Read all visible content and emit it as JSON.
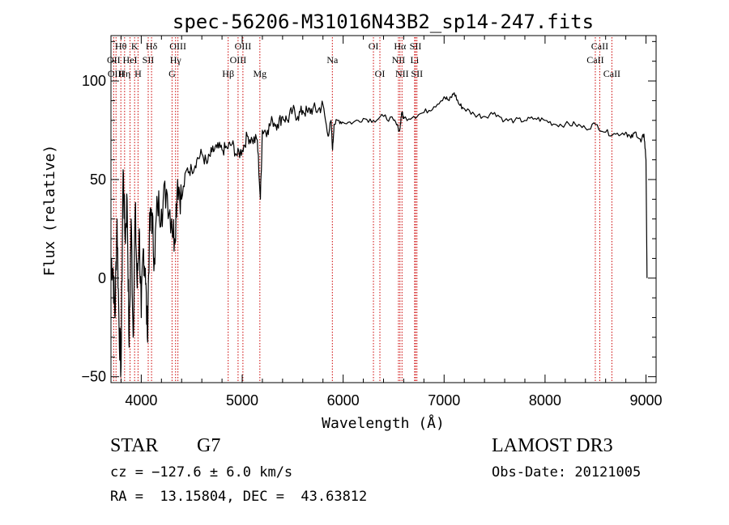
{
  "chart_data": {
    "type": "line",
    "title": "spec-56206-M31016N43B2_sp14-247.fits",
    "xlabel": "Wavelength (Å)",
    "ylabel": "Flux (relative)",
    "xlim": [
      3700,
      9100
    ],
    "ylim": [
      -53,
      123
    ],
    "xticks": [
      4000,
      5000,
      6000,
      7000,
      8000,
      9000
    ],
    "yticks": [
      -50,
      0,
      50,
      100
    ],
    "xtick_labels": [
      "4000",
      "5000",
      "6000",
      "7000",
      "8000",
      "9000"
    ],
    "ytick_labels": [
      "−50",
      "0",
      "50",
      "100"
    ],
    "grid": false,
    "line_color": "#000000",
    "marker_color": "#cc0000",
    "spectrum": {
      "x": [
        3700,
        3720,
        3740,
        3760,
        3780,
        3800,
        3820,
        3840,
        3860,
        3880,
        3900,
        3920,
        3940,
        3960,
        3980,
        4000,
        4020,
        4040,
        4060,
        4080,
        4100,
        4130,
        4160,
        4200,
        4250,
        4300,
        4330,
        4360,
        4400,
        4450,
        4500,
        4550,
        4600,
        4650,
        4700,
        4750,
        4800,
        4850,
        4900,
        4950,
        5000,
        5050,
        5100,
        5150,
        5180,
        5200,
        5250,
        5300,
        5350,
        5400,
        5450,
        5500,
        5550,
        5600,
        5650,
        5700,
        5750,
        5800,
        5850,
        5880,
        5895,
        5910,
        5950,
        6000,
        6100,
        6200,
        6300,
        6400,
        6500,
        6560,
        6580,
        6600,
        6700,
        6800,
        6900,
        7000,
        7050,
        7100,
        7150,
        7200,
        7300,
        7400,
        7500,
        7600,
        7700,
        7800,
        7900,
        8000,
        8100,
        8200,
        8300,
        8400,
        8500,
        8600,
        8700,
        8800,
        8850,
        8900,
        8950,
        8980,
        9000,
        9010
      ],
      "y": [
        10,
        5,
        -20,
        30,
        -25,
        -45,
        55,
        20,
        40,
        -35,
        30,
        -30,
        35,
        -5,
        25,
        -20,
        15,
        5,
        -30,
        20,
        35,
        10,
        38,
        35,
        45,
        30,
        20,
        50,
        40,
        55,
        55,
        60,
        63,
        58,
        64,
        66,
        65,
        66,
        68,
        62,
        65,
        72,
        70,
        70,
        40,
        75,
        75,
        80,
        78,
        82,
        80,
        85,
        82,
        85,
        84,
        86,
        85,
        88,
        72,
        80,
        65,
        78,
        80,
        79,
        79,
        81,
        80,
        82,
        80,
        75,
        84,
        81,
        82,
        84,
        87,
        92,
        90,
        94,
        88,
        86,
        83,
        82,
        84,
        80,
        80,
        80,
        81,
        80,
        78,
        78,
        78,
        76,
        78,
        74,
        73,
        74,
        71,
        74,
        69,
        73,
        60,
        0
      ]
    },
    "lines": [
      {
        "name": "Hθ",
        "wavelength": 3798,
        "row": 1
      },
      {
        "name": "OII",
        "wavelength": 3727,
        "row": 2
      },
      {
        "name": "OIII",
        "wavelength": 3750,
        "row": 3
      },
      {
        "name": "Hη",
        "wavelength": 3835,
        "row": 3
      },
      {
        "name": "K",
        "wavelength": 3934,
        "row": 1
      },
      {
        "name": "HeI",
        "wavelength": 3889,
        "row": 2
      },
      {
        "name": "H",
        "wavelength": 3968,
        "row": 3
      },
      {
        "name": "SII",
        "wavelength": 4069,
        "row": 2
      },
      {
        "name": "Hδ",
        "wavelength": 4102,
        "row": 1
      },
      {
        "name": "OIII",
        "wavelength": 4363,
        "row": 1
      },
      {
        "name": "Hγ",
        "wavelength": 4340,
        "row": 2
      },
      {
        "name": "G",
        "wavelength": 4305,
        "row": 3
      },
      {
        "name": "OIII",
        "wavelength": 5007,
        "row": 1
      },
      {
        "name": "OIII",
        "wavelength": 4959,
        "row": 2
      },
      {
        "name": "Hβ",
        "wavelength": 4861,
        "row": 3
      },
      {
        "name": "Mg",
        "wavelength": 5175,
        "row": 3
      },
      {
        "name": "Na",
        "wavelength": 5893,
        "row": 2
      },
      {
        "name": "OI",
        "wavelength": 6300,
        "row": 1
      },
      {
        "name": "OI",
        "wavelength": 6364,
        "row": 3
      },
      {
        "name": "Hα",
        "wavelength": 6563,
        "row": 1
      },
      {
        "name": "NII",
        "wavelength": 6548,
        "row": 2
      },
      {
        "name": "NII",
        "wavelength": 6583,
        "row": 3
      },
      {
        "name": "SII",
        "wavelength": 6717,
        "row": 1
      },
      {
        "name": "Li",
        "wavelength": 6708,
        "row": 2
      },
      {
        "name": "SII",
        "wavelength": 6731,
        "row": 3
      },
      {
        "name": "CaII",
        "wavelength": 8542,
        "row": 1
      },
      {
        "name": "CaII",
        "wavelength": 8498,
        "row": 2
      },
      {
        "name": "CaII",
        "wavelength": 8662,
        "row": 3
      }
    ]
  },
  "info": {
    "object_class": "STAR",
    "subclass": "G7",
    "survey": "LAMOST DR3",
    "cz": "cz = −127.6 ± 6.0 km/s",
    "obs_date": "Obs-Date: 20121005",
    "coords": "RA =  13.15804, DEC =  43.63812"
  }
}
